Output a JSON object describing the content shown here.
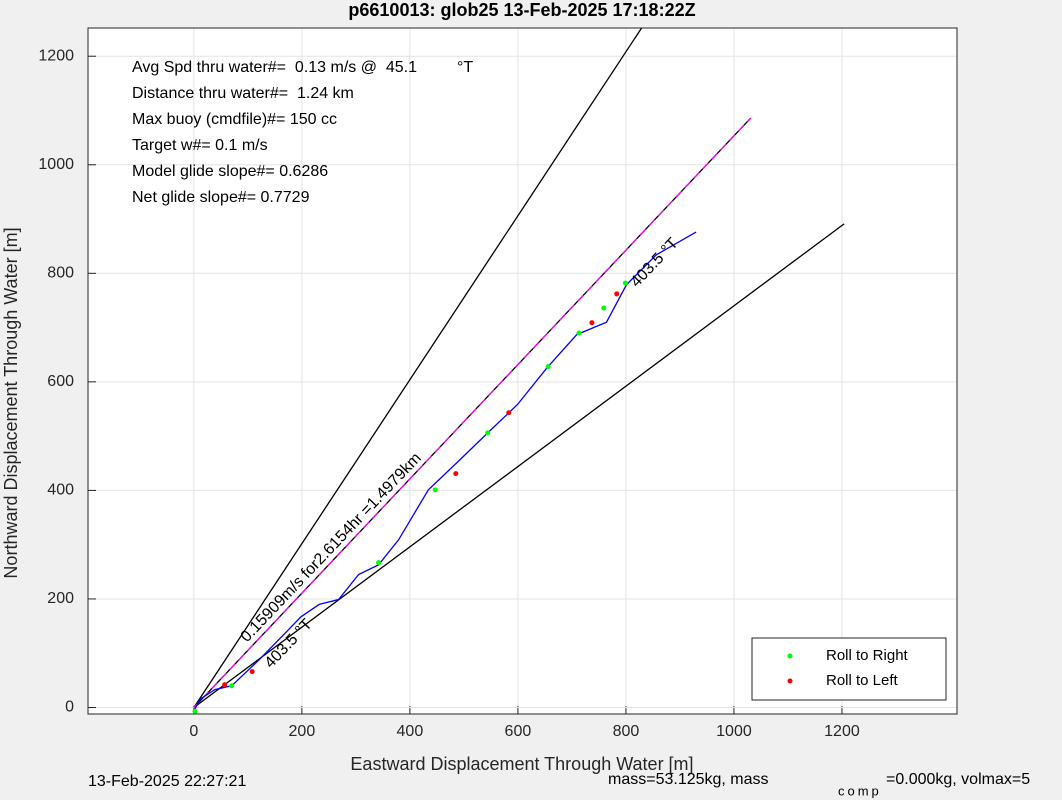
{
  "chart_data": {
    "type": "line",
    "title": "p6610013: glob25 13-Feb-2025 17:18:22Z",
    "x_label": "Eastward Displacement Through Water [m]",
    "y_label": "Northward Displacement Through Water [m]",
    "xlim": [
      -196,
      1413
    ],
    "ylim": [
      -12,
      1252
    ],
    "xticks": [
      0,
      200,
      400,
      600,
      800,
      1000,
      1200
    ],
    "yticks": [
      0,
      200,
      400,
      600,
      800,
      1000,
      1200
    ],
    "grid": true,
    "legend_position": "lower right",
    "info_lines": [
      "Avg Spd thru water#=  0.13 m/s @  45.1         °T",
      "Distance thru water#=  1.24 km",
      "Max buoy (cmdfile)#= 150 cc",
      "Target w#= 0.1 m/s",
      "Model glide slope#= 0.6286",
      "Net glide slope#= 0.7729"
    ],
    "annotations": [
      "0.15909m/s for2.6154hr =1.4979km",
      "403.5 °T",
      "403.5 °T"
    ],
    "footer": [
      "13-Feb-2025 22:27:21",
      "mass=53.125kg, mass",
      "comp",
      "=0.000kg, volmax=5"
    ],
    "series": [
      {
        "color": "#000000",
        "style": "solid",
        "x": [
          0,
          829
        ],
        "values": [
          0,
          1252
        ]
      },
      {
        "color": "#000000",
        "style": "solid",
        "x": [
          0,
          1204
        ],
        "values": [
          0,
          891
        ]
      },
      {
        "color": "#000000",
        "style": "solid",
        "x": [
          0,
          1031
        ],
        "values": [
          0,
          1086
        ]
      },
      {
        "color": "#ff00ff",
        "style": "dashed",
        "x": [
          0,
          1031
        ],
        "values": [
          0,
          1086
        ]
      },
      {
        "color": "#0000ff",
        "style": "solid",
        "x": [
          0,
          11,
          39,
          70,
          121,
          176,
          198,
          232,
          268,
          305,
          342,
          379,
          434,
          489,
          544,
          599,
          654,
          709,
          764,
          801,
          856,
          930
        ],
        "values": [
          -7,
          15,
          33,
          40,
          88,
          144,
          167,
          190,
          199,
          245,
          263,
          309,
          401,
          453,
          506,
          558,
          626,
          687,
          710,
          779,
          834,
          876
        ]
      },
      {
        "name": "Roll to Right",
        "color": "#00ff00",
        "mode": "markers",
        "x": [
          2,
          70,
          342,
          447,
          544,
          656,
          713,
          759,
          799
        ],
        "values": [
          -7,
          40,
          267,
          401,
          506,
          628,
          690,
          736,
          782
        ]
      },
      {
        "name": "Roll to Left",
        "color": "#ff0000",
        "mode": "markers",
        "x": [
          57,
          108,
          485,
          583,
          737,
          783
        ],
        "values": [
          42,
          66,
          431,
          543,
          709,
          762
        ]
      }
    ]
  }
}
